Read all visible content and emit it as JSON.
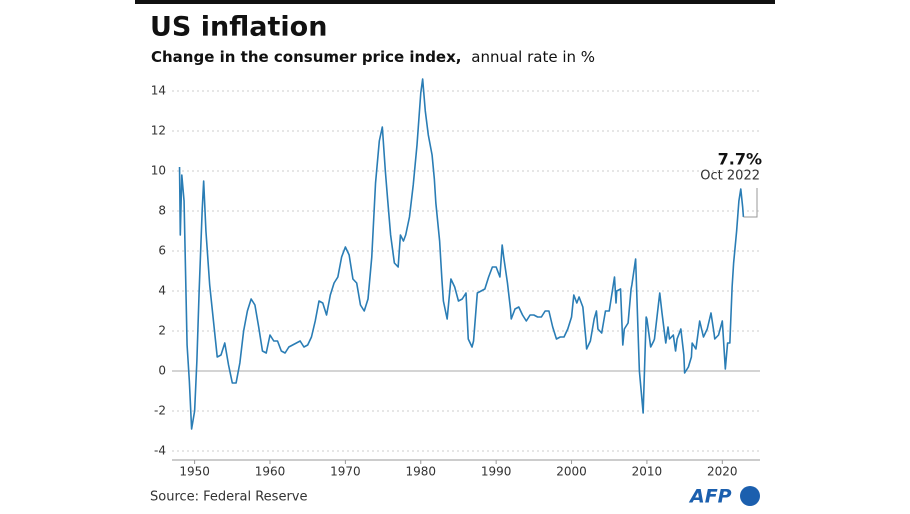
{
  "chart_data": {
    "type": "line",
    "title": "US inflation",
    "subtitle": "Change in the consumer price index,",
    "subtitle_unit": "annual rate in %",
    "source": "Source: Federal Reserve",
    "logo": "AFP",
    "annotation": {
      "value": "7.7%",
      "date": "Oct 2022"
    },
    "color": "#2a7db5",
    "grid": true,
    "xlim": [
      1947,
      2025
    ],
    "xticks": [
      1950,
      1960,
      1970,
      1980,
      1990,
      2000,
      2010,
      2020
    ],
    "ylim": [
      -4,
      15
    ],
    "yticks": [
      -4,
      -2,
      0,
      2,
      4,
      6,
      8,
      10,
      12,
      14
    ],
    "x": [
      1948.0,
      1948.1,
      1948.3,
      1948.6,
      1949.0,
      1949.3,
      1949.6,
      1950.0,
      1950.3,
      1950.6,
      1951.0,
      1951.2,
      1951.5,
      1952.0,
      1952.5,
      1953.0,
      1953.5,
      1954.0,
      1954.5,
      1955.0,
      1955.5,
      1956.0,
      1956.5,
      1957.0,
      1957.5,
      1958.0,
      1958.5,
      1959.0,
      1959.5,
      1960.0,
      1960.5,
      1961.0,
      1961.5,
      1962.0,
      1962.5,
      1963.0,
      1963.5,
      1964.0,
      1964.5,
      1965.0,
      1965.5,
      1966.0,
      1966.5,
      1967.0,
      1967.5,
      1968.0,
      1968.5,
      1969.0,
      1969.5,
      1970.0,
      1970.5,
      1971.0,
      1971.5,
      1972.0,
      1972.5,
      1973.0,
      1973.5,
      1974.0,
      1974.5,
      1974.9,
      1975.3,
      1975.6,
      1976.0,
      1976.5,
      1977.0,
      1977.3,
      1977.7,
      1978.0,
      1978.5,
      1979.0,
      1979.5,
      1980.0,
      1980.25,
      1980.6,
      1981.0,
      1981.5,
      1981.8,
      1982.0,
      1982.5,
      1982.8,
      1983.0,
      1983.5,
      1984.0,
      1984.5,
      1985.0,
      1985.5,
      1986.0,
      1986.3,
      1986.8,
      1987.0,
      1987.5,
      1988.0,
      1988.5,
      1989.0,
      1989.5,
      1990.0,
      1990.5,
      1990.8,
      1991.0,
      1991.5,
      1991.9,
      1992.0,
      1992.5,
      1993.0,
      1993.5,
      1994.0,
      1994.5,
      1995.0,
      1995.5,
      1996.0,
      1996.5,
      1997.0,
      1997.5,
      1998.0,
      1998.5,
      1999.0,
      1999.5,
      2000.0,
      2000.3,
      2000.7,
      2001.0,
      2001.5,
      2001.9,
      2002.0,
      2002.5,
      2003.0,
      2003.3,
      2003.5,
      2004.0,
      2004.5,
      2005.0,
      2005.7,
      2005.9,
      2006.0,
      2006.5,
      2006.8,
      2007.0,
      2007.5,
      2007.9,
      2008.0,
      2008.5,
      2008.9,
      2009.0,
      2009.5,
      2009.9,
      2010.0,
      2010.5,
      2010.9,
      2011.0,
      2011.7,
      2012.0,
      2012.5,
      2012.8,
      2013.0,
      2013.5,
      2013.8,
      2014.0,
      2014.5,
      2014.9,
      2015.0,
      2015.5,
      2015.9,
      2016.0,
      2016.5,
      2017.0,
      2017.5,
      2018.0,
      2018.5,
      2018.9,
      2019.0,
      2019.5,
      2020.0,
      2020.4,
      2020.7,
      2021.0,
      2021.3,
      2021.5,
      2021.9,
      2022.2,
      2022.45,
      2022.7,
      2022.8
    ],
    "values": [
      10.2,
      6.8,
      9.8,
      8.5,
      1.3,
      -0.5,
      -2.9,
      -2.0,
      0.5,
      4.0,
      8.0,
      9.5,
      7.0,
      4.3,
      2.5,
      0.7,
      0.8,
      1.4,
      0.3,
      -0.6,
      -0.6,
      0.4,
      2.0,
      3.0,
      3.6,
      3.3,
      2.2,
      1.0,
      0.9,
      1.8,
      1.5,
      1.5,
      1.0,
      0.9,
      1.2,
      1.3,
      1.4,
      1.5,
      1.2,
      1.3,
      1.7,
      2.5,
      3.5,
      3.4,
      2.8,
      3.8,
      4.4,
      4.7,
      5.7,
      6.2,
      5.8,
      4.6,
      4.4,
      3.3,
      3.0,
      3.6,
      5.7,
      9.4,
      11.5,
      12.2,
      10.0,
      8.6,
      6.8,
      5.4,
      5.2,
      6.8,
      6.5,
      6.8,
      7.7,
      9.3,
      11.3,
      13.9,
      14.6,
      13.0,
      11.8,
      10.8,
      9.6,
      8.4,
      6.5,
      4.6,
      3.5,
      2.6,
      4.6,
      4.2,
      3.5,
      3.6,
      3.9,
      1.6,
      1.2,
      1.5,
      3.9,
      4.0,
      4.1,
      4.7,
      5.2,
      5.2,
      4.7,
      6.3,
      5.7,
      4.4,
      3.1,
      2.6,
      3.1,
      3.2,
      2.8,
      2.5,
      2.8,
      2.8,
      2.7,
      2.7,
      3.0,
      3.0,
      2.2,
      1.6,
      1.7,
      1.7,
      2.1,
      2.7,
      3.8,
      3.4,
      3.7,
      3.2,
      1.6,
      1.1,
      1.5,
      2.6,
      3.0,
      2.1,
      1.9,
      3.0,
      3.0,
      4.7,
      3.4,
      4.0,
      4.1,
      1.3,
      2.1,
      2.4,
      4.1,
      4.3,
      5.6,
      1.1,
      0.0,
      -2.1,
      2.7,
      2.6,
      1.2,
      1.5,
      1.6,
      3.9,
      2.9,
      1.4,
      2.2,
      1.6,
      1.8,
      1.0,
      1.6,
      2.1,
      0.8,
      -0.1,
      0.2,
      0.7,
      1.4,
      1.1,
      2.5,
      1.7,
      2.1,
      2.9,
      1.9,
      1.6,
      1.8,
      2.5,
      0.1,
      1.4,
      1.4,
      4.2,
      5.4,
      7.0,
      8.5,
      9.1,
      8.2,
      7.7
    ]
  }
}
